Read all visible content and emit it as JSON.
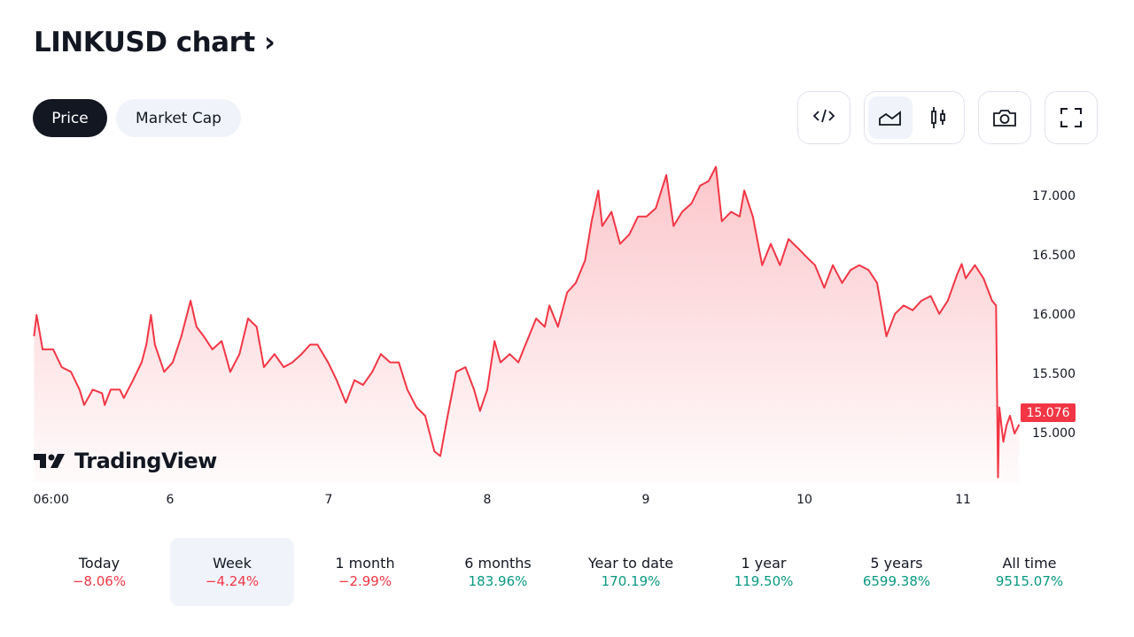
{
  "header": {
    "title": "LINKUSD chart",
    "chevron": "›"
  },
  "tabs": [
    {
      "label": "Price",
      "active": true
    },
    {
      "label": "Market Cap",
      "active": false
    }
  ],
  "toolbar": {
    "icons": [
      "embed-code-icon",
      "area-chart-icon",
      "candlestick-icon",
      "camera-icon",
      "fullscreen-icon"
    ],
    "selected": "area-chart-icon"
  },
  "colors": {
    "line": "#f23645",
    "negative": "#f23645",
    "positive": "#089981",
    "accent_bg": "#f0f3fa"
  },
  "logo": {
    "text": "TradingView"
  },
  "chart_data": {
    "type": "area",
    "title": "LINKUSD",
    "xlabel": "",
    "ylabel": "",
    "x_unit": "hours since day 5 00:00",
    "ylim": [
      14.6,
      17.25
    ],
    "y_ticks": [
      "17.000",
      "16.500",
      "16.000",
      "15.500",
      "15.000"
    ],
    "y_tick_values": [
      17,
      16.5,
      16,
      15.5,
      15
    ],
    "x_ticks": [
      {
        "h": 6,
        "label": "06:00"
      },
      {
        "h": 24,
        "label": "6"
      },
      {
        "h": 48,
        "label": "7"
      },
      {
        "h": 72,
        "label": "8"
      },
      {
        "h": 96,
        "label": "9"
      },
      {
        "h": 120,
        "label": "10"
      },
      {
        "h": 144,
        "label": "11"
      }
    ],
    "last_price": "15.076",
    "points": [
      [
        3.4,
        15.82
      ],
      [
        3.8,
        16.0
      ],
      [
        4.7,
        15.71
      ],
      [
        6.3,
        15.71
      ],
      [
        7.6,
        15.56
      ],
      [
        9.0,
        15.52
      ],
      [
        10.3,
        15.37
      ],
      [
        11.0,
        15.24
      ],
      [
        12.3,
        15.37
      ],
      [
        13.7,
        15.34
      ],
      [
        14.1,
        15.24
      ],
      [
        15.0,
        15.37
      ],
      [
        16.4,
        15.37
      ],
      [
        17.0,
        15.3
      ],
      [
        18.4,
        15.45
      ],
      [
        19.7,
        15.6
      ],
      [
        20.4,
        15.75
      ],
      [
        21.1,
        16.0
      ],
      [
        21.7,
        15.75
      ],
      [
        23.1,
        15.52
      ],
      [
        24.4,
        15.6
      ],
      [
        25.7,
        15.82
      ],
      [
        27.1,
        16.12
      ],
      [
        28.0,
        15.9
      ],
      [
        29.1,
        15.82
      ],
      [
        30.4,
        15.71
      ],
      [
        31.8,
        15.78
      ],
      [
        33.1,
        15.52
      ],
      [
        34.5,
        15.67
      ],
      [
        35.8,
        15.97
      ],
      [
        37.1,
        15.9
      ],
      [
        38.2,
        15.56
      ],
      [
        39.8,
        15.67
      ],
      [
        41.2,
        15.56
      ],
      [
        42.5,
        15.6
      ],
      [
        43.9,
        15.67
      ],
      [
        45.2,
        15.75
      ],
      [
        46.3,
        15.75
      ],
      [
        47.9,
        15.6
      ],
      [
        49.2,
        15.45
      ],
      [
        50.6,
        15.26
      ],
      [
        51.9,
        15.45
      ],
      [
        53.2,
        15.41
      ],
      [
        54.6,
        15.52
      ],
      [
        55.9,
        15.67
      ],
      [
        57.3,
        15.6
      ],
      [
        58.6,
        15.6
      ],
      [
        59.9,
        15.37
      ],
      [
        61.3,
        15.22
      ],
      [
        62.6,
        15.15
      ],
      [
        64.0,
        14.85
      ],
      [
        64.9,
        14.81
      ],
      [
        66.0,
        15.15
      ],
      [
        67.3,
        15.52
      ],
      [
        68.7,
        15.56
      ],
      [
        70.0,
        15.37
      ],
      [
        70.9,
        15.19
      ],
      [
        72.0,
        15.37
      ],
      [
        73.1,
        15.78
      ],
      [
        74.0,
        15.6
      ],
      [
        75.4,
        15.67
      ],
      [
        76.7,
        15.6
      ],
      [
        78.0,
        15.78
      ],
      [
        79.4,
        15.97
      ],
      [
        80.7,
        15.9
      ],
      [
        81.4,
        16.08
      ],
      [
        82.7,
        15.9
      ],
      [
        84.1,
        16.19
      ],
      [
        85.4,
        16.27
      ],
      [
        86.8,
        16.46
      ],
      [
        87.8,
        16.79
      ],
      [
        88.8,
        17.05
      ],
      [
        89.4,
        16.75
      ],
      [
        90.8,
        16.87
      ],
      [
        92.1,
        16.6
      ],
      [
        93.5,
        16.68
      ],
      [
        94.8,
        16.83
      ],
      [
        96.1,
        16.83
      ],
      [
        97.5,
        16.9
      ],
      [
        99.1,
        17.18
      ],
      [
        100.2,
        16.75
      ],
      [
        101.5,
        16.87
      ],
      [
        102.9,
        16.94
      ],
      [
        104.2,
        17.09
      ],
      [
        105.5,
        17.13
      ],
      [
        106.6,
        17.25
      ],
      [
        107.5,
        16.79
      ],
      [
        108.9,
        16.87
      ],
      [
        110.2,
        16.83
      ],
      [
        110.9,
        17.05
      ],
      [
        112.2,
        16.83
      ],
      [
        113.6,
        16.42
      ],
      [
        114.9,
        16.6
      ],
      [
        116.3,
        16.42
      ],
      [
        117.6,
        16.64
      ],
      [
        118.9,
        16.57
      ],
      [
        120.3,
        16.49
      ],
      [
        121.6,
        16.42
      ],
      [
        123.0,
        16.23
      ],
      [
        124.3,
        16.42
      ],
      [
        125.7,
        16.27
      ],
      [
        127.0,
        16.38
      ],
      [
        128.3,
        16.42
      ],
      [
        129.7,
        16.38
      ],
      [
        131.0,
        16.27
      ],
      [
        132.4,
        15.82
      ],
      [
        133.7,
        16.01
      ],
      [
        135.0,
        16.08
      ],
      [
        136.4,
        16.04
      ],
      [
        137.7,
        16.12
      ],
      [
        139.1,
        16.16
      ],
      [
        140.4,
        16.01
      ],
      [
        141.7,
        16.12
      ],
      [
        143.1,
        16.34
      ],
      [
        143.8,
        16.43
      ],
      [
        144.4,
        16.31
      ],
      [
        145.8,
        16.42
      ],
      [
        147.1,
        16.31
      ],
      [
        148.4,
        16.12
      ],
      [
        149.0,
        16.08
      ],
      [
        149.3,
        14.63
      ],
      [
        149.5,
        15.22
      ],
      [
        150.1,
        14.93
      ],
      [
        150.6,
        15.07
      ],
      [
        151.1,
        15.15
      ],
      [
        151.8,
        15.0
      ],
      [
        152.5,
        15.076
      ]
    ]
  },
  "periods": [
    {
      "label": "Today",
      "change": "−8.06%",
      "dir": "neg"
    },
    {
      "label": "Week",
      "change": "−4.24%",
      "dir": "neg",
      "selected": true
    },
    {
      "label": "1 month",
      "change": "−2.99%",
      "dir": "neg"
    },
    {
      "label": "6 months",
      "change": "183.96%",
      "dir": "pos"
    },
    {
      "label": "Year to date",
      "change": "170.19%",
      "dir": "pos"
    },
    {
      "label": "1 year",
      "change": "119.50%",
      "dir": "pos"
    },
    {
      "label": "5 years",
      "change": "6599.38%",
      "dir": "pos"
    },
    {
      "label": "All time",
      "change": "9515.07%",
      "dir": "pos"
    }
  ]
}
